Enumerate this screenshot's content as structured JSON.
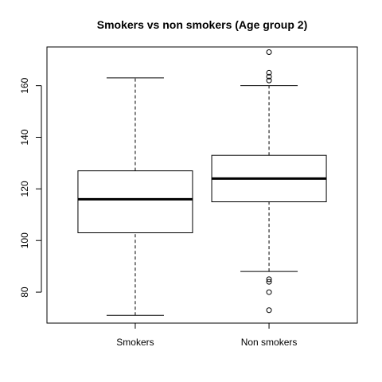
{
  "chart_data": {
    "type": "boxplot",
    "title": "Smokers vs non smokers (Age group 2)",
    "xlabel": "",
    "ylabel": "",
    "ylim": [
      68,
      175
    ],
    "yticks": [
      80,
      100,
      120,
      140,
      160
    ],
    "grid": false,
    "categories": [
      "Smokers",
      "Non smokers"
    ],
    "boxes": [
      {
        "category": "Smokers",
        "whisker_low": 71,
        "q1": 103,
        "median": 116,
        "q3": 127,
        "whisker_high": 163,
        "outliers": []
      },
      {
        "category": "Non smokers",
        "whisker_low": 88,
        "q1": 115,
        "median": 124,
        "q3": 133,
        "whisker_high": 160,
        "outliers": [
          73,
          80,
          84,
          85,
          162,
          163.5,
          165,
          173
        ]
      }
    ]
  }
}
